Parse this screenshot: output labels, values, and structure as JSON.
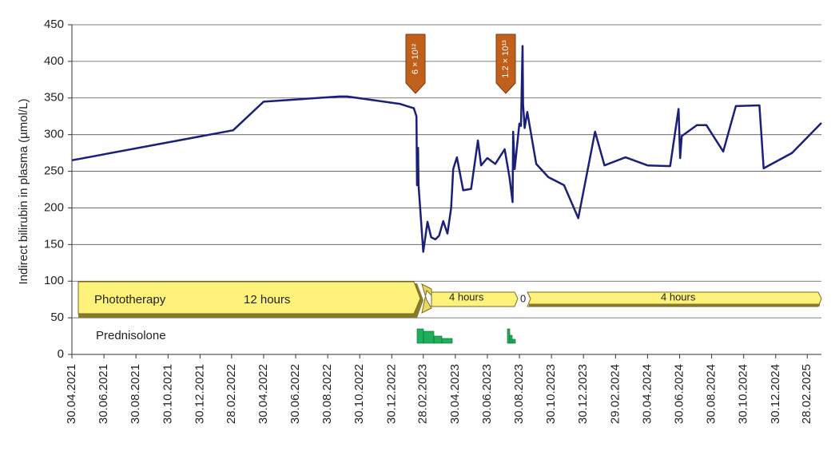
{
  "chart_data": {
    "type": "line",
    "y_axis_label": "Indirect bilirubin in plasma (µmol/L)",
    "color": "#1a1f7a",
    "grid": true,
    "ylim": [
      0,
      450
    ],
    "yticks": [
      0,
      50,
      100,
      150,
      200,
      250,
      300,
      350,
      400,
      450
    ],
    "xlim": [
      "2021-04-30",
      "2025-03-27"
    ],
    "xticks": [
      {
        "value": "2021-04-30",
        "label": "30.04.2021"
      },
      {
        "value": "2021-06-30",
        "label": "30.06.2021"
      },
      {
        "value": "2021-08-30",
        "label": "30.08.2021"
      },
      {
        "value": "2021-10-30",
        "label": "30.10.2021"
      },
      {
        "value": "2021-12-30",
        "label": "30.12.2021"
      },
      {
        "value": "2022-02-28",
        "label": "28.02.2022"
      },
      {
        "value": "2022-04-30",
        "label": "30.04.2022"
      },
      {
        "value": "2022-06-30",
        "label": "30.06.2022"
      },
      {
        "value": "2022-08-30",
        "label": "30.08.2022"
      },
      {
        "value": "2022-10-30",
        "label": "30.10.2022"
      },
      {
        "value": "2022-12-30",
        "label": "30.12.2022"
      },
      {
        "value": "2023-02-28",
        "label": "28.02.2023"
      },
      {
        "value": "2023-04-30",
        "label": "30.04.2023"
      },
      {
        "value": "2023-06-30",
        "label": "30.06.2023"
      },
      {
        "value": "2023-08-30",
        "label": "30.08.2023"
      },
      {
        "value": "2023-10-30",
        "label": "30.10.2023"
      },
      {
        "value": "2023-12-30",
        "label": "30.12.2023"
      },
      {
        "value": "2024-02-29",
        "label": "29.02.2024"
      },
      {
        "value": "2024-04-30",
        "label": "30.04.2024"
      },
      {
        "value": "2024-06-30",
        "label": "30.06.2024"
      },
      {
        "value": "2024-08-30",
        "label": "30.08.2024"
      },
      {
        "value": "2024-10-30",
        "label": "30.10.2024"
      },
      {
        "value": "2024-12-30",
        "label": "30.12.2024"
      },
      {
        "value": "2025-02-28",
        "label": "28.02.2025"
      }
    ],
    "x": [
      "2021-04-30",
      "2022-03-03",
      "2022-04-30",
      "2022-09-21",
      "2022-10-06",
      "2023-01-14",
      "2023-02-10",
      "2023-02-15",
      "2023-02-16",
      "2023-02-18",
      "2023-02-19",
      "2023-02-28",
      "2023-03-08",
      "2023-03-15",
      "2023-03-23",
      "2023-03-30",
      "2023-04-07",
      "2023-04-15",
      "2023-04-22",
      "2023-04-26",
      "2023-05-03",
      "2023-05-15",
      "2023-05-30",
      "2023-06-12",
      "2023-06-18",
      "2023-06-30",
      "2023-07-15",
      "2023-08-02",
      "2023-08-11",
      "2023-08-17",
      "2023-08-18",
      "2023-08-21",
      "2023-08-30",
      "2023-09-02",
      "2023-09-05",
      "2023-09-06",
      "2023-09-09",
      "2023-09-14",
      "2023-10-01",
      "2023-10-24",
      "2023-11-23",
      "2023-12-20",
      "2024-01-21",
      "2024-02-08",
      "2024-03-19",
      "2024-04-30",
      "2024-06-12",
      "2024-06-28",
      "2024-07-01",
      "2024-07-04",
      "2024-08-02",
      "2024-08-20",
      "2024-09-21",
      "2024-10-15",
      "2024-11-29",
      "2024-12-07",
      "2025-01-30",
      "2025-03-27"
    ],
    "values": [
      265,
      306,
      345,
      352,
      352,
      342,
      336,
      325,
      231,
      282,
      231,
      140,
      181,
      160,
      157,
      162,
      182,
      165,
      200,
      253,
      269,
      224,
      226,
      292,
      258,
      268,
      260,
      280,
      242,
      208,
      304,
      253,
      315,
      312,
      421,
      342,
      309,
      331,
      260,
      242,
      231,
      186,
      304,
      258,
      269,
      258,
      257,
      335,
      268,
      298,
      313,
      313,
      277,
      339,
      340,
      254,
      275,
      316
    ],
    "annotations": {
      "dose_1": "6 × 10¹²",
      "dose_2": "1.2 × 10¹³",
      "phototherapy": "Phototherapy",
      "phototherapy_1": "12 hours",
      "phototherapy_2": "4 hours",
      "phototherapy_3": "0",
      "phototherapy_4": "4 hours",
      "prednisolone": "Prednisolone"
    }
  }
}
